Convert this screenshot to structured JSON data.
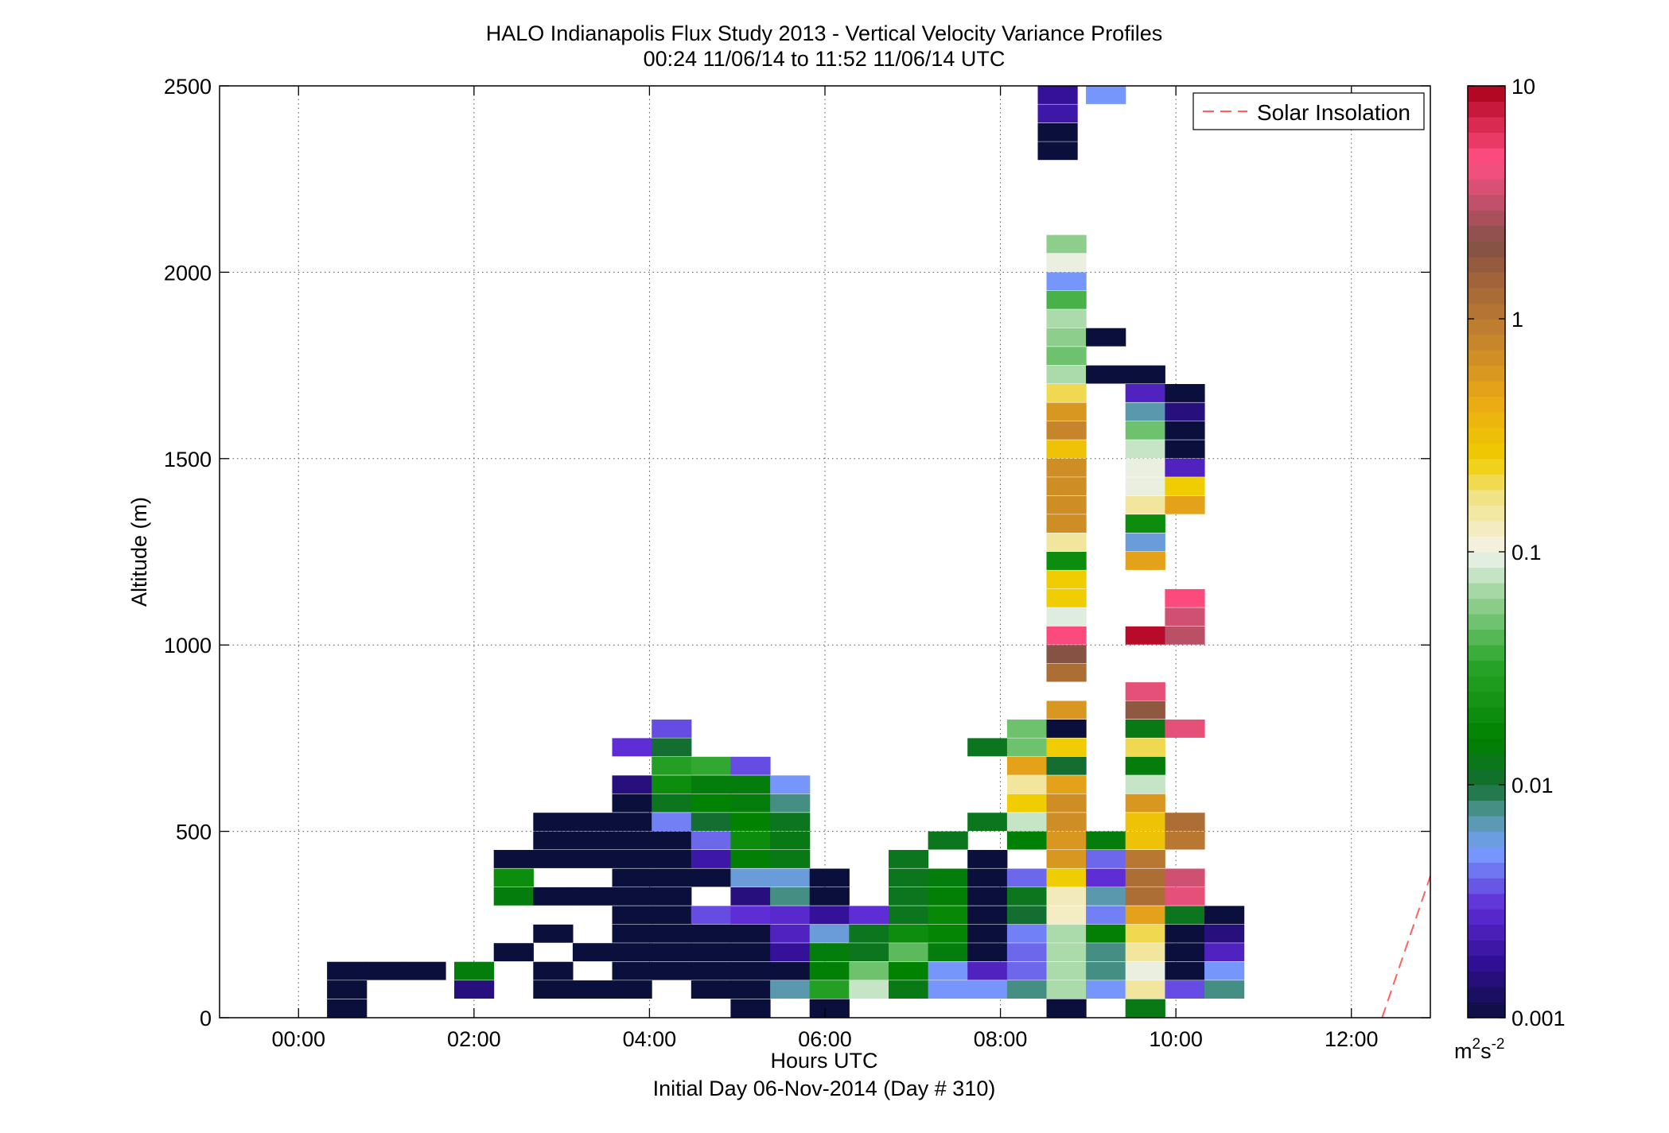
{
  "chart_data": {
    "type": "heatmap",
    "title": "HALO Indianapolis Flux Study 2013 - Vertical Velocity Variance Profiles",
    "subtitle": "00:24 11/06/14 to 11:52 11/06/14  UTC",
    "xlabel": "Hours UTC",
    "xlabel2": "Initial Day 06-Nov-2014 (Day # 310)",
    "ylabel": "Altitude (m)",
    "xlim": [
      -0.9,
      12.9
    ],
    "ylim": [
      0,
      2500
    ],
    "x_ticks": [
      0,
      2,
      4,
      6,
      8,
      10,
      12
    ],
    "x_tick_labels": [
      "00:00",
      "02:00",
      "04:00",
      "06:00",
      "08:00",
      "10:00",
      "12:00"
    ],
    "y_ticks": [
      0,
      500,
      1000,
      1500,
      2000,
      2500
    ],
    "y_tick_labels": [
      "0",
      "500",
      "1000",
      "1500",
      "2000",
      "2500"
    ],
    "grid": true,
    "colorbar": {
      "scale": "log",
      "range": [
        0.001,
        10
      ],
      "ticks": [
        0.001,
        0.01,
        0.1,
        1,
        10
      ],
      "tick_labels": [
        "0.001",
        "0.01",
        "0.1",
        "1",
        "10"
      ],
      "unit_base": "m",
      "unit_exp1": "2",
      "unit_mid": "s",
      "unit_exp2": "-2"
    },
    "legend": {
      "position": "top-right",
      "entries": [
        {
          "label": "Solar Insolation",
          "color": "#ff6060",
          "style": "dashed"
        }
      ]
    },
    "solar_insolation": {
      "x": [
        12.35,
        12.9
      ],
      "y": [
        0,
        380
      ]
    },
    "profile_x": [
      0.55,
      1.0,
      1.45,
      2.0,
      2.45,
      2.9,
      3.35,
      3.8,
      4.25,
      4.7,
      5.15,
      5.6,
      6.05,
      6.5,
      6.95,
      7.4,
      7.85,
      8.3,
      8.75,
      9.2,
      9.65,
      10.1,
      10.55,
      11.0,
      11.45,
      11.9,
      12.35
    ],
    "bin_height": 48,
    "cells": [
      {
        "c": 0,
        "y": 50,
        "v": 0.001
      },
      {
        "c": 0,
        "y": 100,
        "v": 0.001
      },
      {
        "c": 0,
        "y": 150,
        "v": 0.001
      },
      {
        "c": 1,
        "y": 150,
        "v": 0.001
      },
      {
        "c": 2,
        "y": 150,
        "v": 0.001
      },
      {
        "c": 3,
        "y": 100,
        "v": 0.0015
      },
      {
        "c": 3,
        "y": 150,
        "v": 0.014
      },
      {
        "c": 4,
        "y": 200,
        "v": 0.001
      },
      {
        "c": 4,
        "y": 350,
        "v": 0.014
      },
      {
        "c": 4,
        "y": 400,
        "v": 0.02
      },
      {
        "c": 4,
        "y": 450,
        "v": 0.001
      },
      {
        "c": 5,
        "y": 100,
        "v": 0.001
      },
      {
        "c": 5,
        "y": 150,
        "v": 0.001
      },
      {
        "c": 5,
        "y": 250,
        "v": 0.001
      },
      {
        "c": 5,
        "y": 350,
        "v": 0.001
      },
      {
        "c": 5,
        "y": 450,
        "v": 0.001
      },
      {
        "c": 5,
        "y": 500,
        "v": 0.001
      },
      {
        "c": 5,
        "y": 550,
        "v": 0.001
      },
      {
        "c": 6,
        "y": 100,
        "v": 0.001
      },
      {
        "c": 6,
        "y": 200,
        "v": 0.001
      },
      {
        "c": 6,
        "y": 350,
        "v": 0.001
      },
      {
        "c": 6,
        "y": 450,
        "v": 0.001
      },
      {
        "c": 6,
        "y": 500,
        "v": 0.001
      },
      {
        "c": 6,
        "y": 550,
        "v": 0.001
      },
      {
        "c": 7,
        "y": 100,
        "v": 0.001
      },
      {
        "c": 7,
        "y": 150,
        "v": 0.001
      },
      {
        "c": 7,
        "y": 200,
        "v": 0.001
      },
      {
        "c": 7,
        "y": 250,
        "v": 0.001
      },
      {
        "c": 7,
        "y": 300,
        "v": 0.001
      },
      {
        "c": 7,
        "y": 350,
        "v": 0.001
      },
      {
        "c": 7,
        "y": 400,
        "v": 0.001
      },
      {
        "c": 7,
        "y": 450,
        "v": 0.001
      },
      {
        "c": 7,
        "y": 500,
        "v": 0.001
      },
      {
        "c": 7,
        "y": 550,
        "v": 0.001
      },
      {
        "c": 7,
        "y": 600,
        "v": 0.001
      },
      {
        "c": 7,
        "y": 650,
        "v": 0.0015
      },
      {
        "c": 7,
        "y": 750,
        "v": 0.003
      },
      {
        "c": 8,
        "y": 150,
        "v": 0.001
      },
      {
        "c": 8,
        "y": 200,
        "v": 0.001
      },
      {
        "c": 8,
        "y": 250,
        "v": 0.001
      },
      {
        "c": 8,
        "y": 300,
        "v": 0.001
      },
      {
        "c": 8,
        "y": 350,
        "v": 0.001
      },
      {
        "c": 8,
        "y": 400,
        "v": 0.001
      },
      {
        "c": 8,
        "y": 450,
        "v": 0.001
      },
      {
        "c": 8,
        "y": 500,
        "v": 0.001
      },
      {
        "c": 8,
        "y": 550,
        "v": 0.0045
      },
      {
        "c": 8,
        "y": 600,
        "v": 0.012
      },
      {
        "c": 8,
        "y": 650,
        "v": 0.02
      },
      {
        "c": 8,
        "y": 700,
        "v": 0.03
      },
      {
        "c": 8,
        "y": 750,
        "v": 0.01
      },
      {
        "c": 8,
        "y": 800,
        "v": 0.0035
      },
      {
        "c": 9,
        "y": 100,
        "v": 0.001
      },
      {
        "c": 9,
        "y": 150,
        "v": 0.001
      },
      {
        "c": 9,
        "y": 200,
        "v": 0.001
      },
      {
        "c": 9,
        "y": 250,
        "v": 0.001
      },
      {
        "c": 9,
        "y": 300,
        "v": 0.0035
      },
      {
        "c": 9,
        "y": 400,
        "v": 0.001
      },
      {
        "c": 9,
        "y": 450,
        "v": 0.002
      },
      {
        "c": 9,
        "y": 500,
        "v": 0.004
      },
      {
        "c": 9,
        "y": 550,
        "v": 0.01
      },
      {
        "c": 9,
        "y": 600,
        "v": 0.016
      },
      {
        "c": 9,
        "y": 650,
        "v": 0.014
      },
      {
        "c": 9,
        "y": 700,
        "v": 0.035
      },
      {
        "c": 10,
        "y": 50,
        "v": 0.001
      },
      {
        "c": 10,
        "y": 100,
        "v": 0.001
      },
      {
        "c": 10,
        "y": 150,
        "v": 0.001
      },
      {
        "c": 10,
        "y": 200,
        "v": 0.001
      },
      {
        "c": 10,
        "y": 250,
        "v": 0.001
      },
      {
        "c": 10,
        "y": 300,
        "v": 0.003
      },
      {
        "c": 10,
        "y": 350,
        "v": 0.0015
      },
      {
        "c": 10,
        "y": 400,
        "v": 0.006
      },
      {
        "c": 10,
        "y": 450,
        "v": 0.015
      },
      {
        "c": 10,
        "y": 500,
        "v": 0.02
      },
      {
        "c": 10,
        "y": 550,
        "v": 0.016
      },
      {
        "c": 10,
        "y": 600,
        "v": 0.014
      },
      {
        "c": 10,
        "y": 650,
        "v": 0.014
      },
      {
        "c": 10,
        "y": 700,
        "v": 0.0035
      },
      {
        "c": 11,
        "y": 100,
        "v": 0.007
      },
      {
        "c": 11,
        "y": 150,
        "v": 0.001
      },
      {
        "c": 11,
        "y": 200,
        "v": 0.0018
      },
      {
        "c": 11,
        "y": 250,
        "v": 0.0025
      },
      {
        "c": 11,
        "y": 300,
        "v": 0.0028
      },
      {
        "c": 11,
        "y": 350,
        "v": 0.008
      },
      {
        "c": 11,
        "y": 400,
        "v": 0.006
      },
      {
        "c": 11,
        "y": 450,
        "v": 0.013
      },
      {
        "c": 11,
        "y": 500,
        "v": 0.013
      },
      {
        "c": 11,
        "y": 550,
        "v": 0.012
      },
      {
        "c": 11,
        "y": 600,
        "v": 0.008
      },
      {
        "c": 11,
        "y": 650,
        "v": 0.005
      },
      {
        "c": 12,
        "y": 50,
        "v": 0.001
      },
      {
        "c": 12,
        "y": 100,
        "v": 0.03
      },
      {
        "c": 12,
        "y": 150,
        "v": 0.015
      },
      {
        "c": 12,
        "y": 200,
        "v": 0.014
      },
      {
        "c": 12,
        "y": 250,
        "v": 0.006
      },
      {
        "c": 12,
        "y": 300,
        "v": 0.0018
      },
      {
        "c": 12,
        "y": 350,
        "v": 0.001
      },
      {
        "c": 12,
        "y": 400,
        "v": 0.001
      },
      {
        "c": 13,
        "y": 100,
        "v": 0.08
      },
      {
        "c": 13,
        "y": 150,
        "v": 0.05
      },
      {
        "c": 13,
        "y": 200,
        "v": 0.012
      },
      {
        "c": 13,
        "y": 250,
        "v": 0.012
      },
      {
        "c": 13,
        "y": 300,
        "v": 0.003
      },
      {
        "c": 14,
        "y": 100,
        "v": 0.013
      },
      {
        "c": 14,
        "y": 150,
        "v": 0.016
      },
      {
        "c": 14,
        "y": 200,
        "v": 0.045
      },
      {
        "c": 14,
        "y": 250,
        "v": 0.02
      },
      {
        "c": 14,
        "y": 300,
        "v": 0.012
      },
      {
        "c": 14,
        "y": 350,
        "v": 0.012
      },
      {
        "c": 14,
        "y": 400,
        "v": 0.012
      },
      {
        "c": 14,
        "y": 450,
        "v": 0.012
      },
      {
        "c": 15,
        "y": 100,
        "v": 0.005
      },
      {
        "c": 15,
        "y": 150,
        "v": 0.005
      },
      {
        "c": 15,
        "y": 200,
        "v": 0.014
      },
      {
        "c": 15,
        "y": 250,
        "v": 0.017
      },
      {
        "c": 15,
        "y": 300,
        "v": 0.018
      },
      {
        "c": 15,
        "y": 350,
        "v": 0.015
      },
      {
        "c": 15,
        "y": 400,
        "v": 0.014
      },
      {
        "c": 15,
        "y": 500,
        "v": 0.012
      },
      {
        "c": 16,
        "y": 100,
        "v": 0.005
      },
      {
        "c": 16,
        "y": 150,
        "v": 0.0025
      },
      {
        "c": 16,
        "y": 200,
        "v": 0.001
      },
      {
        "c": 16,
        "y": 250,
        "v": 0.001
      },
      {
        "c": 16,
        "y": 300,
        "v": 0.001
      },
      {
        "c": 16,
        "y": 350,
        "v": 0.001
      },
      {
        "c": 16,
        "y": 400,
        "v": 0.001
      },
      {
        "c": 16,
        "y": 450,
        "v": 0.001
      },
      {
        "c": 16,
        "y": 550,
        "v": 0.012
      },
      {
        "c": 16,
        "y": 750,
        "v": 0.012
      },
      {
        "c": 17,
        "y": 100,
        "v": 0.008
      },
      {
        "c": 17,
        "y": 150,
        "v": 0.004
      },
      {
        "c": 17,
        "y": 200,
        "v": 0.004
      },
      {
        "c": 17,
        "y": 250,
        "v": 0.0045
      },
      {
        "c": 17,
        "y": 300,
        "v": 0.01
      },
      {
        "c": 17,
        "y": 350,
        "v": 0.012
      },
      {
        "c": 17,
        "y": 400,
        "v": 0.004
      },
      {
        "c": 17,
        "y": 500,
        "v": 0.015
      },
      {
        "c": 17,
        "y": 550,
        "v": 0.08
      },
      {
        "c": 17,
        "y": 600,
        "v": 0.25
      },
      {
        "c": 17,
        "y": 650,
        "v": 0.15
      },
      {
        "c": 17,
        "y": 700,
        "v": 0.5
      },
      {
        "c": 17,
        "y": 750,
        "v": 0.05
      },
      {
        "c": 17,
        "y": 800,
        "v": 0.05
      },
      {
        "c": 18,
        "y": 50,
        "v": 0.001
      },
      {
        "c": 18,
        "y": 100,
        "v": 0.07
      },
      {
        "c": 18,
        "y": 150,
        "v": 0.07
      },
      {
        "c": 18,
        "y": 200,
        "v": 0.07
      },
      {
        "c": 18,
        "y": 250,
        "v": 0.07
      },
      {
        "c": 18,
        "y": 300,
        "v": 0.125
      },
      {
        "c": 18,
        "y": 350,
        "v": 0.13
      },
      {
        "c": 18,
        "y": 400,
        "v": 0.25
      },
      {
        "c": 18,
        "y": 450,
        "v": 0.6
      },
      {
        "c": 18,
        "y": 500,
        "v": 0.6
      },
      {
        "c": 18,
        "y": 550,
        "v": 0.7
      },
      {
        "c": 18,
        "y": 600,
        "v": 0.7
      },
      {
        "c": 18,
        "y": 650,
        "v": 0.5
      },
      {
        "c": 18,
        "y": 700,
        "v": 0.01
      },
      {
        "c": 18,
        "y": 750,
        "v": 0.25
      },
      {
        "c": 18,
        "y": 800,
        "v": 0.001
      },
      {
        "c": 18,
        "y": 850,
        "v": 0.6
      },
      {
        "c": 18,
        "y": 950,
        "v": 1.2
      },
      {
        "c": 18,
        "y": 1000,
        "v": 2.0
      },
      {
        "c": 18,
        "y": 1050,
        "v": 5.0
      },
      {
        "c": 18,
        "y": 1100,
        "v": 0.09
      },
      {
        "c": 18,
        "y": 1150,
        "v": 0.25
      },
      {
        "c": 18,
        "y": 1200,
        "v": 0.25
      },
      {
        "c": 18,
        "y": 1250,
        "v": 0.02
      },
      {
        "c": 18,
        "y": 1300,
        "v": 0.15
      },
      {
        "c": 18,
        "y": 1350,
        "v": 0.7
      },
      {
        "c": 18,
        "y": 1400,
        "v": 0.7
      },
      {
        "c": 18,
        "y": 1450,
        "v": 0.7
      },
      {
        "c": 18,
        "y": 1500,
        "v": 0.7
      },
      {
        "c": 18,
        "y": 1550,
        "v": 0.3
      },
      {
        "c": 18,
        "y": 1600,
        "v": 0.8
      },
      {
        "c": 18,
        "y": 1650,
        "v": 0.6
      },
      {
        "c": 18,
        "y": 1700,
        "v": 0.2
      },
      {
        "c": 18,
        "y": 1750,
        "v": 0.07
      },
      {
        "c": 18,
        "y": 1800,
        "v": 0.05
      },
      {
        "c": 18,
        "y": 1850,
        "v": 0.06
      },
      {
        "c": 18,
        "y": 1900,
        "v": 0.07
      },
      {
        "c": 18,
        "y": 1950,
        "v": 0.04
      },
      {
        "c": 18,
        "y": 2000,
        "v": 0.005
      },
      {
        "c": 18,
        "y": 2050,
        "v": 0.1
      },
      {
        "c": 18,
        "y": 2100,
        "v": 0.06
      },
      {
        "c": 19,
        "y": 100,
        "v": 0.005
      },
      {
        "c": 19,
        "y": 150,
        "v": 0.008
      },
      {
        "c": 19,
        "y": 200,
        "v": 0.008
      },
      {
        "c": 19,
        "y": 250,
        "v": 0.015
      },
      {
        "c": 19,
        "y": 300,
        "v": 0.0045
      },
      {
        "c": 19,
        "y": 350,
        "v": 0.007
      },
      {
        "c": 19,
        "y": 400,
        "v": 0.003
      },
      {
        "c": 19,
        "y": 450,
        "v": 0.004
      },
      {
        "c": 19,
        "y": 500,
        "v": 0.014
      },
      {
        "c": 19,
        "y": 1750,
        "v": 0.001
      },
      {
        "c": 19,
        "y": 1850,
        "v": 0.001
      },
      {
        "c": 20,
        "y": 50,
        "v": 0.013
      },
      {
        "c": 20,
        "y": 100,
        "v": 0.15
      },
      {
        "c": 20,
        "y": 150,
        "v": 0.1
      },
      {
        "c": 20,
        "y": 200,
        "v": 0.15
      },
      {
        "c": 20,
        "y": 250,
        "v": 0.2
      },
      {
        "c": 20,
        "y": 300,
        "v": 0.5
      },
      {
        "c": 20,
        "y": 350,
        "v": 1.2
      },
      {
        "c": 20,
        "y": 400,
        "v": 1.2
      },
      {
        "c": 20,
        "y": 450,
        "v": 1.0
      },
      {
        "c": 20,
        "y": 500,
        "v": 0.3
      },
      {
        "c": 20,
        "y": 550,
        "v": 0.3
      },
      {
        "c": 20,
        "y": 600,
        "v": 0.6
      },
      {
        "c": 20,
        "y": 650,
        "v": 0.08
      },
      {
        "c": 20,
        "y": 700,
        "v": 0.014
      },
      {
        "c": 20,
        "y": 750,
        "v": 0.2
      },
      {
        "c": 20,
        "y": 800,
        "v": 0.013
      },
      {
        "c": 20,
        "y": 850,
        "v": 1.8
      },
      {
        "c": 20,
        "y": 900,
        "v": 4.0
      },
      {
        "c": 20,
        "y": 1050,
        "v": 9.0
      },
      {
        "c": 20,
        "y": 1250,
        "v": 0.5
      },
      {
        "c": 20,
        "y": 1300,
        "v": 0.006
      },
      {
        "c": 20,
        "y": 1350,
        "v": 0.02
      },
      {
        "c": 20,
        "y": 1400,
        "v": 0.15
      },
      {
        "c": 20,
        "y": 1450,
        "v": 0.1
      },
      {
        "c": 20,
        "y": 1500,
        "v": 0.1
      },
      {
        "c": 20,
        "y": 1550,
        "v": 0.08
      },
      {
        "c": 20,
        "y": 1600,
        "v": 0.05
      },
      {
        "c": 20,
        "y": 1650,
        "v": 0.007
      },
      {
        "c": 20,
        "y": 1700,
        "v": 0.0025
      },
      {
        "c": 20,
        "y": 1750,
        "v": 0.001
      },
      {
        "c": 21,
        "y": 100,
        "v": 0.0035
      },
      {
        "c": 21,
        "y": 150,
        "v": 0.001
      },
      {
        "c": 21,
        "y": 200,
        "v": 0.001
      },
      {
        "c": 21,
        "y": 250,
        "v": 0.001
      },
      {
        "c": 21,
        "y": 300,
        "v": 0.012
      },
      {
        "c": 21,
        "y": 350,
        "v": 4.0
      },
      {
        "c": 21,
        "y": 400,
        "v": 3.5
      },
      {
        "c": 21,
        "y": 500,
        "v": 1.0
      },
      {
        "c": 21,
        "y": 550,
        "v": 1.2
      },
      {
        "c": 21,
        "y": 800,
        "v": 4.0
      },
      {
        "c": 21,
        "y": 1050,
        "v": 3.0
      },
      {
        "c": 21,
        "y": 1100,
        "v": 3.5
      },
      {
        "c": 21,
        "y": 1150,
        "v": 5.0
      },
      {
        "c": 21,
        "y": 1400,
        "v": 0.5
      },
      {
        "c": 21,
        "y": 1450,
        "v": 0.25
      },
      {
        "c": 21,
        "y": 1500,
        "v": 0.0025
      },
      {
        "c": 21,
        "y": 1550,
        "v": 0.001
      },
      {
        "c": 21,
        "y": 1600,
        "v": 0.001
      },
      {
        "c": 21,
        "y": 1650,
        "v": 0.0015
      },
      {
        "c": 21,
        "y": 1700,
        "v": 0.001
      },
      {
        "c": 22,
        "y": 100,
        "v": 0.008
      },
      {
        "c": 22,
        "y": 150,
        "v": 0.005
      },
      {
        "c": 22,
        "y": 200,
        "v": 0.0025
      },
      {
        "c": 22,
        "y": 250,
        "v": 0.0015
      },
      {
        "c": 22,
        "y": 300,
        "v": 0.001
      }
    ],
    "high_cells": [
      {
        "x": 8.65,
        "y": 2350,
        "v": 0.001
      },
      {
        "x": 8.65,
        "y": 2400,
        "v": 0.001
      },
      {
        "x": 8.65,
        "y": 2450,
        "v": 0.002
      },
      {
        "x": 8.65,
        "y": 2500,
        "v": 0.0018
      },
      {
        "x": 9.2,
        "y": 2500,
        "v": 0.005
      }
    ]
  },
  "colors": {
    "background": "#ffffff",
    "axis": "#000000",
    "grid": "#555555",
    "solar": "#ff6060"
  }
}
